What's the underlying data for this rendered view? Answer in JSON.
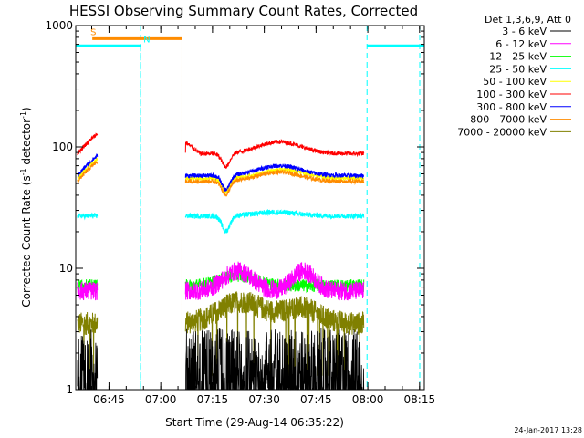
{
  "chart_data": {
    "type": "line",
    "title": "HESSI Observing Summary Count Rates, Corrected",
    "xlabel": "Start Time (29-Aug-14 06:35:22)",
    "ylabel_main": "Corrected Count Rate (s",
    "ylabel_sup1": "-1",
    "ylabel_mid": " detector",
    "ylabel_sup2": "-1",
    "ylabel_end": ")",
    "ylog": true,
    "ylim": [
      1,
      1000
    ],
    "xlim_minutes": [
      0,
      101
    ],
    "x_units": "minutes since start",
    "y_ticks": [
      {
        "value": 1,
        "label": "1"
      },
      {
        "value": 10,
        "label": "10"
      },
      {
        "value": 100,
        "label": "100"
      },
      {
        "value": 1000,
        "label": "1000"
      }
    ],
    "x_ticks": [
      {
        "value": 9.63,
        "label": "06:45"
      },
      {
        "value": 24.63,
        "label": "07:00"
      },
      {
        "value": 39.63,
        "label": "07:15"
      },
      {
        "value": 54.63,
        "label": "07:30"
      },
      {
        "value": 69.63,
        "label": "07:45"
      },
      {
        "value": 84.63,
        "label": "08:00"
      },
      {
        "value": 99.63,
        "label": "08:15"
      }
    ],
    "legend_header": "Det 1,3,6,9, Att 0",
    "series": [
      {
        "name": "3 - 6 keV",
        "color": "#000000"
      },
      {
        "name": "6 - 12 keV",
        "color": "#ff00ff"
      },
      {
        "name": "12 - 25 keV",
        "color": "#00ff00"
      },
      {
        "name": "25 - 50 keV",
        "color": "#00ffff"
      },
      {
        "name": "50 - 100 keV",
        "color": "#ffff00"
      },
      {
        "name": "100 - 300 keV",
        "color": "#ff0000"
      },
      {
        "name": "300 - 800 keV",
        "color": "#0000ff"
      },
      {
        "name": "800 - 7000 keV",
        "color": "#ff8c00"
      },
      {
        "name": "7000 - 20000 keV",
        "color": "#808000"
      }
    ],
    "flags": [
      {
        "label": "S",
        "color": "#ff8c00",
        "x_start": 4.8,
        "x_end": 30.8,
        "y": 780
      },
      {
        "label": "N",
        "color": "#00ffff",
        "x_start": 0,
        "x_end": 18.8,
        "y": 680
      },
      {
        "label": "",
        "color": "#00ffff",
        "x_start": 84.4,
        "x_end": 101,
        "y": 680
      }
    ],
    "vlines": [
      {
        "x": 18.8,
        "color": "#00ffff"
      },
      {
        "x": 30.8,
        "color": "#ff8c00"
      },
      {
        "x": 84.4,
        "color": "#00ffff"
      },
      {
        "x": 103.5,
        "color": "#00ffff"
      }
    ]
  },
  "timestamp": "24-Jan-2017 13:28"
}
